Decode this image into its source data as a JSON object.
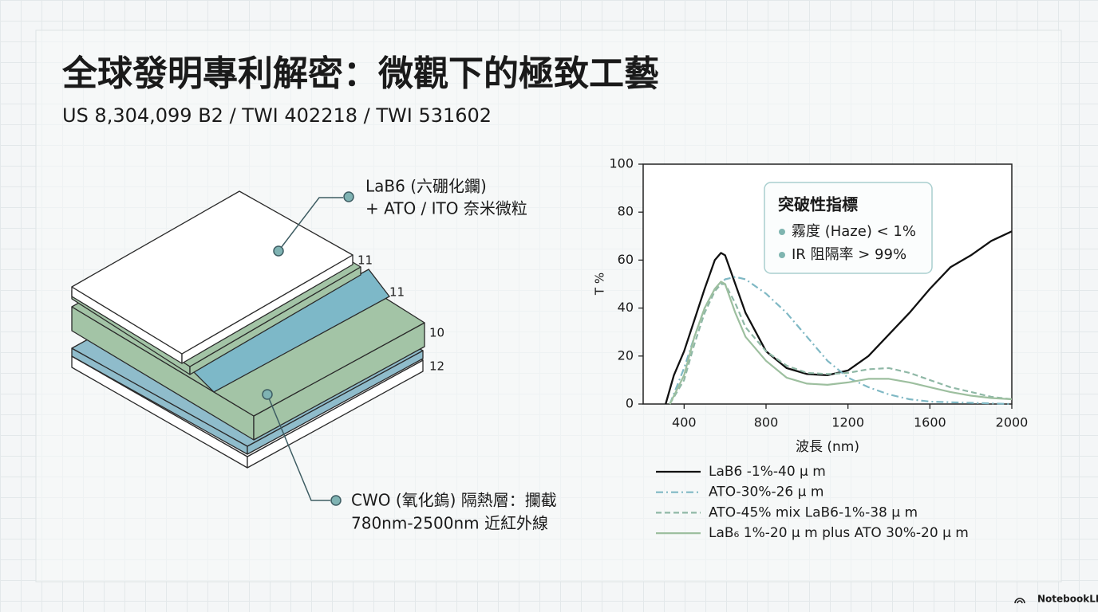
{
  "header": {
    "title": "全球發明專利解密：微觀下的極致工藝",
    "subtitle": "US 8,304,099 B2 / TWI 402218 / TWI 531602"
  },
  "diagram": {
    "top_label": [
      "LaB6 (六硼化鑭)",
      "+ ATO / ITO 奈米微粒"
    ],
    "layer_labels": [
      "11",
      "11",
      "10",
      "12"
    ],
    "bottom_label": [
      "CWO (氧化鎢) 隔熱層：攔截",
      "780nm-2500nm 近紅外線"
    ]
  },
  "chart_data": {
    "type": "line",
    "xlabel": "波長 (nm)",
    "ylabel": "T %",
    "xlim": [
      200,
      2000
    ],
    "xticks": [
      400,
      800,
      1200,
      1600,
      2000
    ],
    "ylim": [
      0,
      100
    ],
    "yticks": [
      0,
      20,
      40,
      60,
      80,
      100
    ],
    "grid": false,
    "callout": {
      "title": "突破性指標",
      "items": [
        "霧度 (Haze) < 1%",
        "IR 阻隔率 > 99%"
      ]
    },
    "series": [
      {
        "name": "LaB6 -1%-40 μ m",
        "color": "#111111",
        "style": "solid",
        "x": [
          310,
          350,
          400,
          450,
          500,
          550,
          580,
          600,
          650,
          700,
          800,
          900,
          1000,
          1100,
          1200,
          1300,
          1400,
          1500,
          1600,
          1700,
          1800,
          1900,
          2000
        ],
        "values": [
          0,
          12,
          22,
          35,
          48,
          60,
          63,
          62,
          50,
          38,
          22,
          15,
          12.5,
          12,
          14,
          20,
          29,
          38,
          48,
          57,
          62,
          68,
          72
        ]
      },
      {
        "name": "ATO-30%-26 μ m",
        "color": "#7fb8c4",
        "style": "dash-dot",
        "x": [
          330,
          400,
          450,
          500,
          550,
          600,
          650,
          700,
          800,
          900,
          1000,
          1100,
          1200,
          1300,
          1400,
          1500,
          1600,
          1800,
          2000
        ],
        "values": [
          0,
          15,
          28,
          40,
          48,
          52,
          53,
          52,
          46,
          38,
          28,
          18,
          11,
          7,
          4,
          2,
          1,
          0.5,
          0
        ]
      },
      {
        "name": "ATO-45% mix LaB6-1%-38 μ m",
        "color": "#8fb8a6",
        "style": "dashed",
        "x": [
          330,
          400,
          450,
          500,
          550,
          580,
          600,
          650,
          700,
          800,
          900,
          1000,
          1100,
          1200,
          1300,
          1400,
          1500,
          1600,
          1700,
          1800,
          1900,
          2000
        ],
        "values": [
          0,
          10,
          25,
          38,
          47,
          50,
          50,
          42,
          32,
          22,
          16,
          13,
          12.5,
          13,
          14.5,
          15,
          13,
          10,
          7,
          5,
          3,
          2
        ]
      },
      {
        "name": "LaB₆ 1%-20 μ m plus ATO 30%-20 μ m",
        "color": "#9dbf9f",
        "style": "solid",
        "x": [
          330,
          400,
          450,
          500,
          550,
          580,
          600,
          650,
          700,
          800,
          900,
          1000,
          1100,
          1200,
          1300,
          1400,
          1500,
          1600,
          1700,
          1800,
          1900,
          2000
        ],
        "values": [
          0,
          12,
          28,
          40,
          48,
          51,
          50,
          38,
          28,
          18,
          11,
          8.5,
          8,
          9,
          10.5,
          10.5,
          9,
          7,
          5,
          3.5,
          2.5,
          2
        ]
      }
    ]
  },
  "footer": {
    "brand": "NotebookLM"
  }
}
